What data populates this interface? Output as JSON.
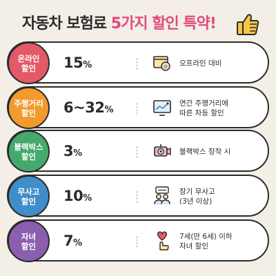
{
  "title": {
    "part1": "자동차 보험료 ",
    "part2": "5가지 할인 특약!"
  },
  "rows": [
    {
      "badge": "온라인\n할인",
      "rate": "15",
      "unit": "%",
      "desc1": "오프라인 대비",
      "desc2": "",
      "color": "#e25a67",
      "icon": "computer-icon"
    },
    {
      "badge": "주행거리\n할인",
      "rate": "6~32",
      "unit": "%",
      "desc1": "연간 주행거리에",
      "desc2": "따른 차등 할인",
      "color": "#f29a2e",
      "icon": "mileage-chart-icon"
    },
    {
      "badge": "블랙박스\n할인",
      "rate": "3",
      "unit": "%",
      "desc1": "블랙박스 장착 시",
      "desc2": "",
      "color": "#45a96c",
      "icon": "dashcam-icon"
    },
    {
      "badge": "무사고\n할인",
      "rate": "10",
      "unit": "%",
      "desc1": "장기 무사고",
      "desc2": "(3년 이상)",
      "color": "#3f8ec9",
      "icon": "people-icon"
    },
    {
      "badge": "자녀\n할인",
      "rate": "7",
      "unit": "%",
      "desc1": "7세(만 6세) 이하",
      "desc2": "자녀 할인",
      "color": "#8a5fb0",
      "icon": "heart-hand-icon"
    }
  ]
}
